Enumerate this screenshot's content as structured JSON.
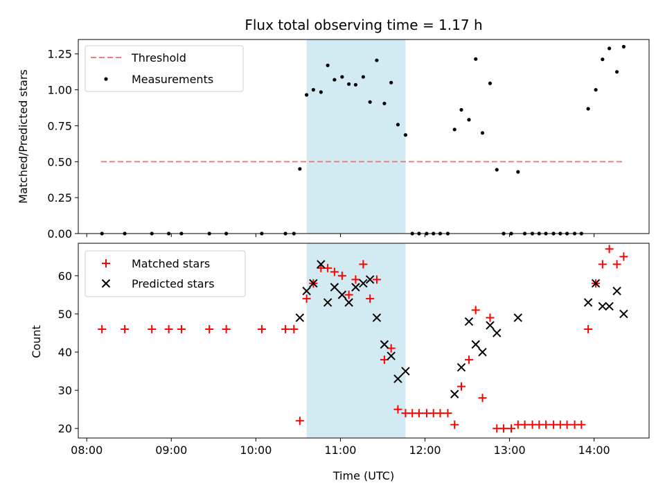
{
  "chart_data": {
    "title": "Flux total observing time = 1.17 h",
    "xlabel": "Time (UTC)",
    "x_tick_labels": [
      "08:00",
      "09:00",
      "10:00",
      "11:00",
      "12:00",
      "13:00",
      "14:00"
    ],
    "x_ticks_hours": [
      8,
      9,
      10,
      11,
      12,
      13,
      14
    ],
    "xlim_hours": [
      7.9,
      14.65
    ],
    "shaded_interval_hours": [
      10.6,
      11.77
    ],
    "colors": {
      "threshold": "#f08080",
      "measurements": "#000000",
      "matched": "#ff0000",
      "predicted": "#000000",
      "shade": "#add8e6"
    },
    "panels": [
      {
        "type": "scatter",
        "ylabel": "Matched/Predicted stars",
        "ylim": [
          0.0,
          1.35
        ],
        "y_tick_values": [
          0.0,
          0.25,
          0.5,
          0.75,
          1.0,
          1.25
        ],
        "y_tick_labels": [
          "0.00",
          "0.25",
          "0.50",
          "0.75",
          "1.00",
          "1.25"
        ],
        "legend_position": "upper-left",
        "threshold": {
          "name": "Threshold",
          "value": 0.5,
          "x_range_hours": [
            8.17,
            14.35
          ]
        },
        "measurements": {
          "name": "Measurements",
          "x_hours": [
            8.18,
            8.45,
            8.77,
            8.97,
            9.12,
            9.45,
            9.65,
            10.07,
            10.35,
            10.45,
            10.52,
            10.6,
            10.68,
            10.77,
            10.85,
            10.93,
            11.02,
            11.1,
            11.18,
            11.27,
            11.35,
            11.43,
            11.52,
            11.6,
            11.68,
            11.77,
            11.85,
            11.93,
            12.02,
            12.1,
            12.18,
            12.27,
            12.35,
            12.43,
            12.52,
            12.6,
            12.68,
            12.77,
            12.85,
            12.93,
            13.02,
            13.1,
            13.18,
            13.27,
            13.35,
            13.43,
            13.52,
            13.6,
            13.68,
            13.77,
            13.85,
            13.93,
            14.02,
            14.1,
            14.18,
            14.27,
            14.35
          ],
          "y": [
            0.0,
            0.0,
            0.0,
            0.0,
            0.0,
            0.0,
            0.0,
            0.0,
            0.0,
            0.0,
            0.45,
            0.965,
            1.0,
            0.984,
            1.17,
            1.07,
            1.09,
            1.04,
            1.035,
            1.09,
            0.915,
            1.205,
            0.905,
            1.05,
            0.758,
            0.686,
            0.0,
            0.0,
            0.0,
            0.0,
            0.0,
            0.0,
            0.724,
            0.861,
            0.792,
            1.214,
            0.7,
            1.045,
            0.444,
            0.0,
            0.0,
            0.429,
            0.0,
            0.0,
            0.0,
            0.0,
            0.0,
            0.0,
            0.0,
            0.0,
            0.0,
            0.868,
            1.0,
            1.212,
            1.288,
            1.125,
            1.3
          ]
        }
      },
      {
        "type": "scatter",
        "ylabel": "Count",
        "ylim": [
          17.5,
          68.5
        ],
        "y_tick_values": [
          20,
          30,
          40,
          50,
          60
        ],
        "y_tick_labels": [
          "20",
          "30",
          "40",
          "50",
          "60"
        ],
        "legend_position": "upper-left",
        "series": [
          {
            "name": "Matched stars",
            "marker": "plus",
            "x_hours": [
              8.18,
              8.45,
              8.77,
              8.97,
              9.12,
              9.45,
              9.65,
              10.07,
              10.35,
              10.45,
              10.52,
              10.6,
              10.68,
              10.77,
              10.85,
              10.93,
              11.02,
              11.1,
              11.18,
              11.27,
              11.35,
              11.43,
              11.52,
              11.6,
              11.68,
              11.77,
              11.85,
              11.93,
              12.02,
              12.1,
              12.18,
              12.27,
              12.35,
              12.43,
              12.52,
              12.6,
              12.68,
              12.77,
              12.85,
              12.93,
              13.02,
              13.1,
              13.18,
              13.27,
              13.35,
              13.43,
              13.52,
              13.6,
              13.68,
              13.77,
              13.85,
              13.93,
              14.02,
              14.1,
              14.18,
              14.27,
              14.35
            ],
            "y": [
              46,
              46,
              46,
              46,
              46,
              46,
              46,
              46,
              46,
              46,
              22,
              54,
              58,
              62,
              62,
              61,
              60,
              55,
              59,
              63,
              54,
              59,
              38,
              41,
              25,
              24,
              24,
              24,
              24,
              24,
              24,
              24,
              21,
              31,
              38,
              51,
              28,
              49,
              20,
              20,
              20,
              21,
              21,
              21,
              21,
              21,
              21,
              21,
              21,
              21,
              21,
              46,
              58,
              63,
              67,
              63,
              65
            ]
          },
          {
            "name": "Predicted stars",
            "marker": "x",
            "x_hours": [
              10.52,
              10.6,
              10.68,
              10.77,
              10.85,
              10.93,
              11.02,
              11.1,
              11.18,
              11.27,
              11.35,
              11.43,
              11.52,
              11.6,
              11.68,
              11.77,
              12.35,
              12.43,
              12.52,
              12.6,
              12.68,
              12.77,
              12.85,
              13.1,
              13.93,
              14.02,
              14.1,
              14.18,
              14.27,
              14.35
            ],
            "y": [
              49,
              56,
              58,
              63,
              53,
              57,
              55,
              53,
              57,
              58,
              59,
              49,
              42,
              39,
              33,
              35,
              29,
              36,
              48,
              42,
              40,
              47,
              45,
              49,
              53,
              58,
              52,
              52,
              56,
              50
            ]
          }
        ]
      }
    ]
  }
}
